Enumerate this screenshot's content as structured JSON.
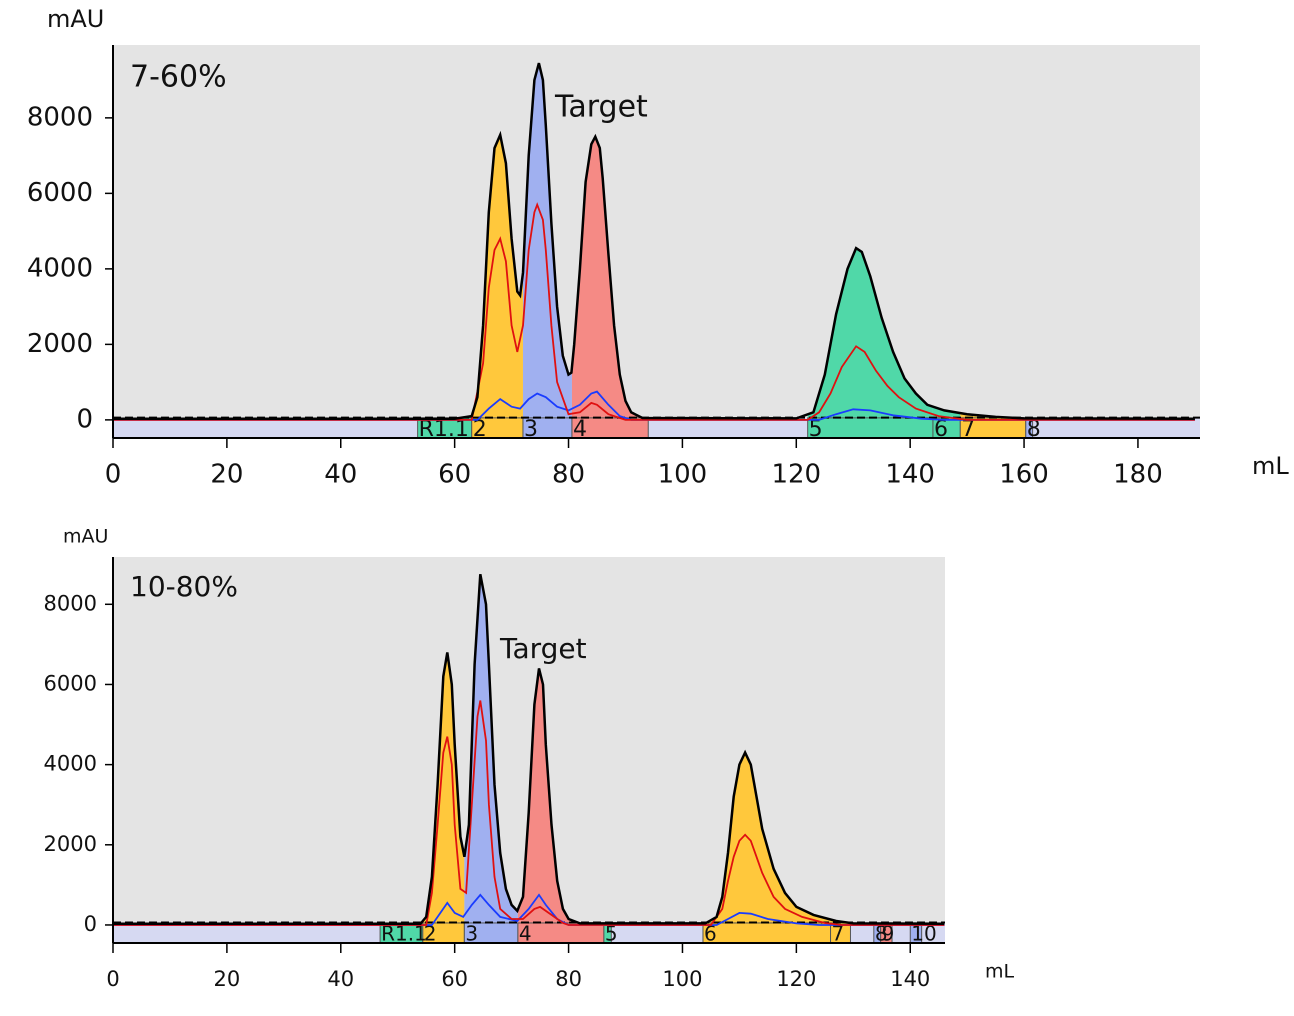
{
  "chart_data": [
    {
      "type": "line",
      "ylabel": "mAU",
      "xlabel": "mL",
      "annotations": [
        "7-60%",
        "Target"
      ],
      "xlim": [
        0,
        190.9
      ],
      "ylim": [
        -480,
        9930
      ],
      "xticks": [
        0,
        20,
        40,
        60,
        80,
        100,
        120,
        140,
        160,
        180
      ],
      "yticks": [
        0,
        2000,
        4000,
        6000,
        8000
      ],
      "series": [
        {
          "color": "#000000",
          "x": [
            0,
            60,
            63,
            64,
            65,
            66,
            67,
            68,
            69,
            70,
            71,
            71.5,
            72,
            73,
            74,
            74.8,
            75.5,
            76,
            77,
            78,
            79,
            80,
            80.5,
            81,
            82,
            83,
            84,
            84.7,
            85.5,
            86,
            87,
            88,
            89,
            90,
            91,
            93,
            120,
            123,
            125,
            127,
            129,
            130.5,
            131.5,
            133,
            135,
            137,
            139,
            141,
            143,
            146,
            150,
            155,
            160,
            190
          ],
          "values": [
            30,
            30,
            100,
            600,
            2500,
            5500,
            7200,
            7550,
            6800,
            4800,
            3400,
            3300,
            3900,
            7000,
            9000,
            9450,
            9000,
            7800,
            5200,
            3000,
            1700,
            1200,
            1250,
            2000,
            4000,
            6300,
            7300,
            7500,
            7200,
            6400,
            4400,
            2500,
            1200,
            500,
            200,
            50,
            40,
            200,
            1200,
            2800,
            4000,
            4550,
            4450,
            3800,
            2700,
            1800,
            1100,
            700,
            400,
            250,
            150,
            80,
            40,
            30
          ]
        },
        {
          "color": "#e01010",
          "x": [
            0,
            63,
            65,
            66,
            67,
            68,
            69,
            70,
            71,
            72,
            73,
            74,
            74.5,
            75.5,
            76,
            77,
            78,
            80,
            82,
            84,
            85,
            87,
            90,
            122,
            124,
            126,
            128,
            130.5,
            132,
            134,
            136,
            138,
            141,
            145,
            150,
            190
          ],
          "values": [
            0,
            0,
            1500,
            3500,
            4500,
            4800,
            4200,
            2500,
            1800,
            2500,
            4500,
            5500,
            5700,
            5300,
            4500,
            2500,
            1000,
            150,
            200,
            450,
            400,
            150,
            0,
            0,
            200,
            700,
            1400,
            1950,
            1800,
            1300,
            900,
            600,
            300,
            100,
            0,
            0
          ]
        },
        {
          "color": "#1a3cff",
          "x": [
            0,
            64,
            66,
            68,
            70,
            71.5,
            73,
            74.5,
            76,
            78,
            80,
            82,
            84,
            85,
            87,
            89,
            91,
            124,
            127,
            130,
            133,
            137,
            142,
            146,
            190
          ],
          "values": [
            0,
            0,
            300,
            550,
            350,
            300,
            550,
            700,
            600,
            350,
            250,
            400,
            700,
            750,
            400,
            100,
            0,
            0,
            150,
            280,
            250,
            120,
            30,
            0,
            0
          ]
        }
      ],
      "fractions": [
        {
          "label": "R1.1",
          "start": 53.5,
          "end": 63,
          "color": "#50d8a8"
        },
        {
          "label": "2",
          "start": 63,
          "end": 72,
          "color": "#ffc83c"
        },
        {
          "label": "3",
          "start": 72,
          "end": 80.6,
          "color": "#a0b0f0"
        },
        {
          "label": "4",
          "start": 80.6,
          "end": 94,
          "color": "#f58a85"
        },
        {
          "label": "5",
          "start": 122,
          "end": 144,
          "color": "#50d8a8"
        },
        {
          "label": "6",
          "start": 144,
          "end": 148.8,
          "color": "#50d8a8"
        },
        {
          "label": "7",
          "start": 148.8,
          "end": 160.3,
          "color": "#ffc83c"
        },
        {
          "label": "8",
          "start": 160.3,
          "end": 161.5,
          "color": "#a0b0f0"
        }
      ]
    },
    {
      "type": "line",
      "ylabel": "mAU",
      "xlabel": "mL",
      "annotations": [
        "10-80%",
        "Target"
      ],
      "xlim": [
        0,
        146.1
      ],
      "ylim": [
        -450,
        9180
      ],
      "xticks": [
        0,
        20,
        40,
        60,
        80,
        100,
        120,
        140
      ],
      "yticks": [
        0,
        2000,
        4000,
        6000,
        8000
      ],
      "series": [
        {
          "color": "#000000",
          "x": [
            0,
            54,
            55,
            56,
            57,
            58,
            58.7,
            59.5,
            60,
            61,
            61.7,
            62.5,
            63.5,
            64.5,
            65.5,
            66,
            67,
            68,
            69,
            70,
            71,
            72,
            73,
            74,
            74.8,
            75.5,
            76,
            77,
            78,
            79,
            80,
            82,
            104,
            106,
            107,
            108,
            109,
            110,
            111,
            112,
            113,
            114,
            116,
            118,
            120,
            123,
            127,
            130,
            146
          ],
          "values": [
            30,
            30,
            200,
            1200,
            3500,
            6200,
            6800,
            6000,
            4500,
            2200,
            1700,
            2500,
            6500,
            8750,
            8000,
            6500,
            3500,
            1800,
            900,
            500,
            350,
            700,
            2800,
            5500,
            6400,
            6000,
            4500,
            2500,
            1100,
            400,
            150,
            40,
            40,
            200,
            700,
            1800,
            3200,
            4000,
            4300,
            4000,
            3200,
            2400,
            1400,
            800,
            450,
            250,
            100,
            40,
            30
          ]
        },
        {
          "color": "#e01010",
          "x": [
            0,
            55,
            56,
            57,
            58,
            58.7,
            59.5,
            60,
            61,
            62,
            63,
            64,
            64.5,
            65.5,
            66,
            67,
            68,
            70,
            72,
            74,
            75,
            77,
            79,
            80,
            105,
            107,
            108,
            109,
            110,
            111,
            112,
            113,
            114,
            116,
            118,
            121,
            125,
            128,
            146
          ],
          "values": [
            0,
            0,
            800,
            2500,
            4300,
            4700,
            4000,
            2500,
            900,
            800,
            3000,
            5200,
            5600,
            4600,
            3000,
            1200,
            400,
            150,
            150,
            400,
            450,
            250,
            50,
            0,
            0,
            400,
            1100,
            1700,
            2100,
            2250,
            2100,
            1700,
            1300,
            700,
            400,
            200,
            50,
            0,
            0
          ]
        },
        {
          "color": "#1a3cff",
          "x": [
            0,
            56,
            57,
            58.7,
            60,
            61.5,
            63,
            64.5,
            66,
            68,
            71,
            73,
            74.8,
            76,
            78,
            80,
            106,
            108,
            110,
            112,
            115,
            120,
            124,
            146
          ],
          "values": [
            0,
            0,
            200,
            550,
            300,
            200,
            500,
            750,
            500,
            200,
            100,
            400,
            750,
            500,
            150,
            0,
            0,
            150,
            300,
            280,
            150,
            40,
            0,
            0
          ]
        }
      ],
      "fractions": [
        {
          "label": "R1.1",
          "start": 46.9,
          "end": 54.4,
          "color": "#50d8a8"
        },
        {
          "label": "2",
          "start": 54.4,
          "end": 61.7,
          "color": "#ffc83c"
        },
        {
          "label": "3",
          "start": 61.7,
          "end": 71.1,
          "color": "#a0b0f0"
        },
        {
          "label": "4",
          "start": 71.1,
          "end": 86.2,
          "color": "#f58a85"
        },
        {
          "label": "5",
          "start": 86.2,
          "end": 87.5,
          "color": "#50d8a8"
        },
        {
          "label": "6",
          "start": 103.6,
          "end": 126,
          "color": "#ffc83c"
        },
        {
          "label": "7",
          "start": 126,
          "end": 129.5,
          "color": "#ffc83c"
        },
        {
          "label": "8",
          "start": 133.6,
          "end": 134.8,
          "color": "#a0b0f0"
        },
        {
          "label": "9",
          "start": 134.8,
          "end": 136.8,
          "color": "#f58a85"
        },
        {
          "label": "10",
          "start": 140,
          "end": 142,
          "color": "#a0b0f0"
        }
      ]
    }
  ]
}
